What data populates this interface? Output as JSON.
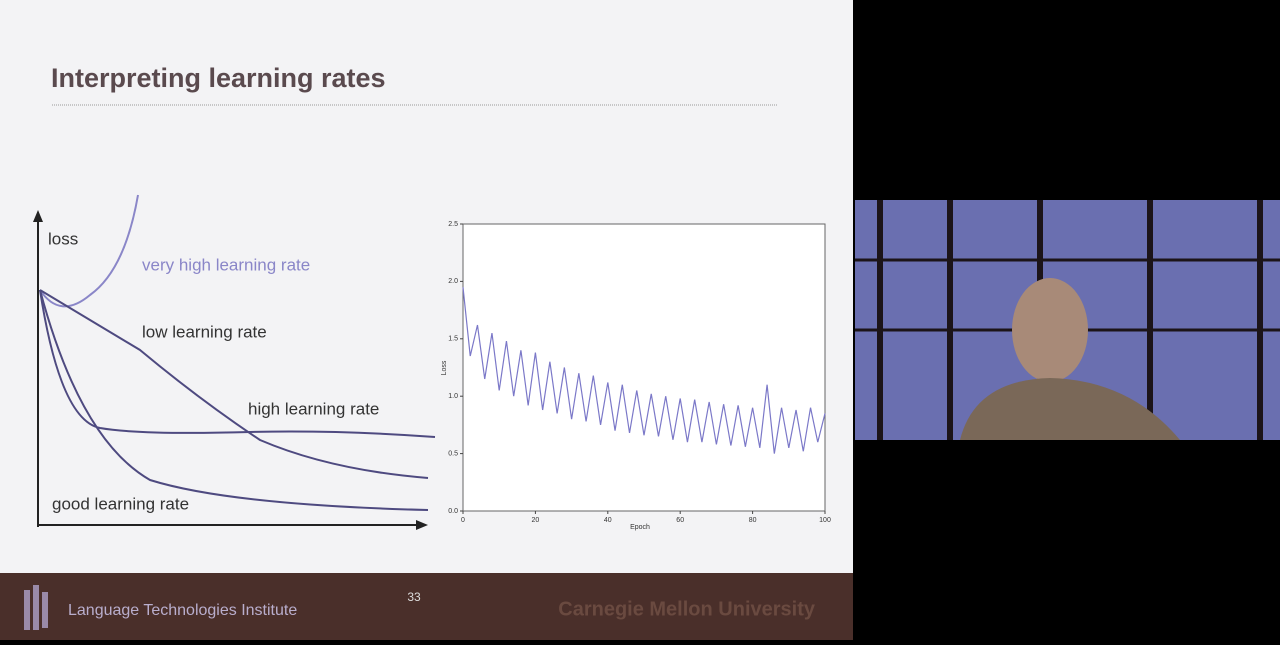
{
  "slide": {
    "title": "Interpreting learning rates",
    "sketch": {
      "axis_label": "loss",
      "curves": [
        "very high learning rate",
        "low learning rate",
        "high learning rate",
        "good learning rate"
      ]
    },
    "page_number": "33"
  },
  "chart_data": {
    "type": "line",
    "xlabel": "Epoch",
    "ylabel": "Loss",
    "x": [
      0,
      2,
      4,
      6,
      8,
      10,
      12,
      14,
      16,
      18,
      20,
      22,
      24,
      26,
      28,
      30,
      32,
      34,
      36,
      38,
      40,
      42,
      44,
      46,
      48,
      50,
      52,
      54,
      56,
      58,
      60,
      62,
      64,
      66,
      68,
      70,
      72,
      74,
      76,
      78,
      80,
      82,
      84,
      86,
      88,
      90,
      92,
      94,
      96,
      98,
      100
    ],
    "series": [
      {
        "name": "Loss",
        "color": "#7b78c8",
        "values": [
          1.95,
          1.35,
          1.62,
          1.15,
          1.55,
          1.05,
          1.48,
          1.0,
          1.4,
          0.92,
          1.38,
          0.88,
          1.3,
          0.85,
          1.25,
          0.8,
          1.2,
          0.78,
          1.18,
          0.75,
          1.12,
          0.7,
          1.1,
          0.68,
          1.05,
          0.66,
          1.02,
          0.65,
          1.0,
          0.62,
          0.98,
          0.6,
          0.97,
          0.6,
          0.95,
          0.58,
          0.93,
          0.57,
          0.92,
          0.56,
          0.9,
          0.55,
          1.1,
          0.5,
          0.9,
          0.55,
          0.88,
          0.52,
          0.9,
          0.6,
          0.85
        ]
      }
    ],
    "xlim": [
      0,
      100
    ],
    "xticks": [
      0,
      20,
      40,
      60,
      80,
      100
    ],
    "ylim": [
      0,
      2.5
    ],
    "yticks": [
      {
        "value": 0,
        "label": "0.0"
      },
      0.5,
      {
        "value": 1,
        "label": "1.0"
      },
      1.5,
      {
        "value": 2,
        "label": "2.0"
      },
      2.5
    ]
  },
  "footer": {
    "institute": "Language Technologies Institute",
    "university": "Carnegie Mellon University"
  }
}
